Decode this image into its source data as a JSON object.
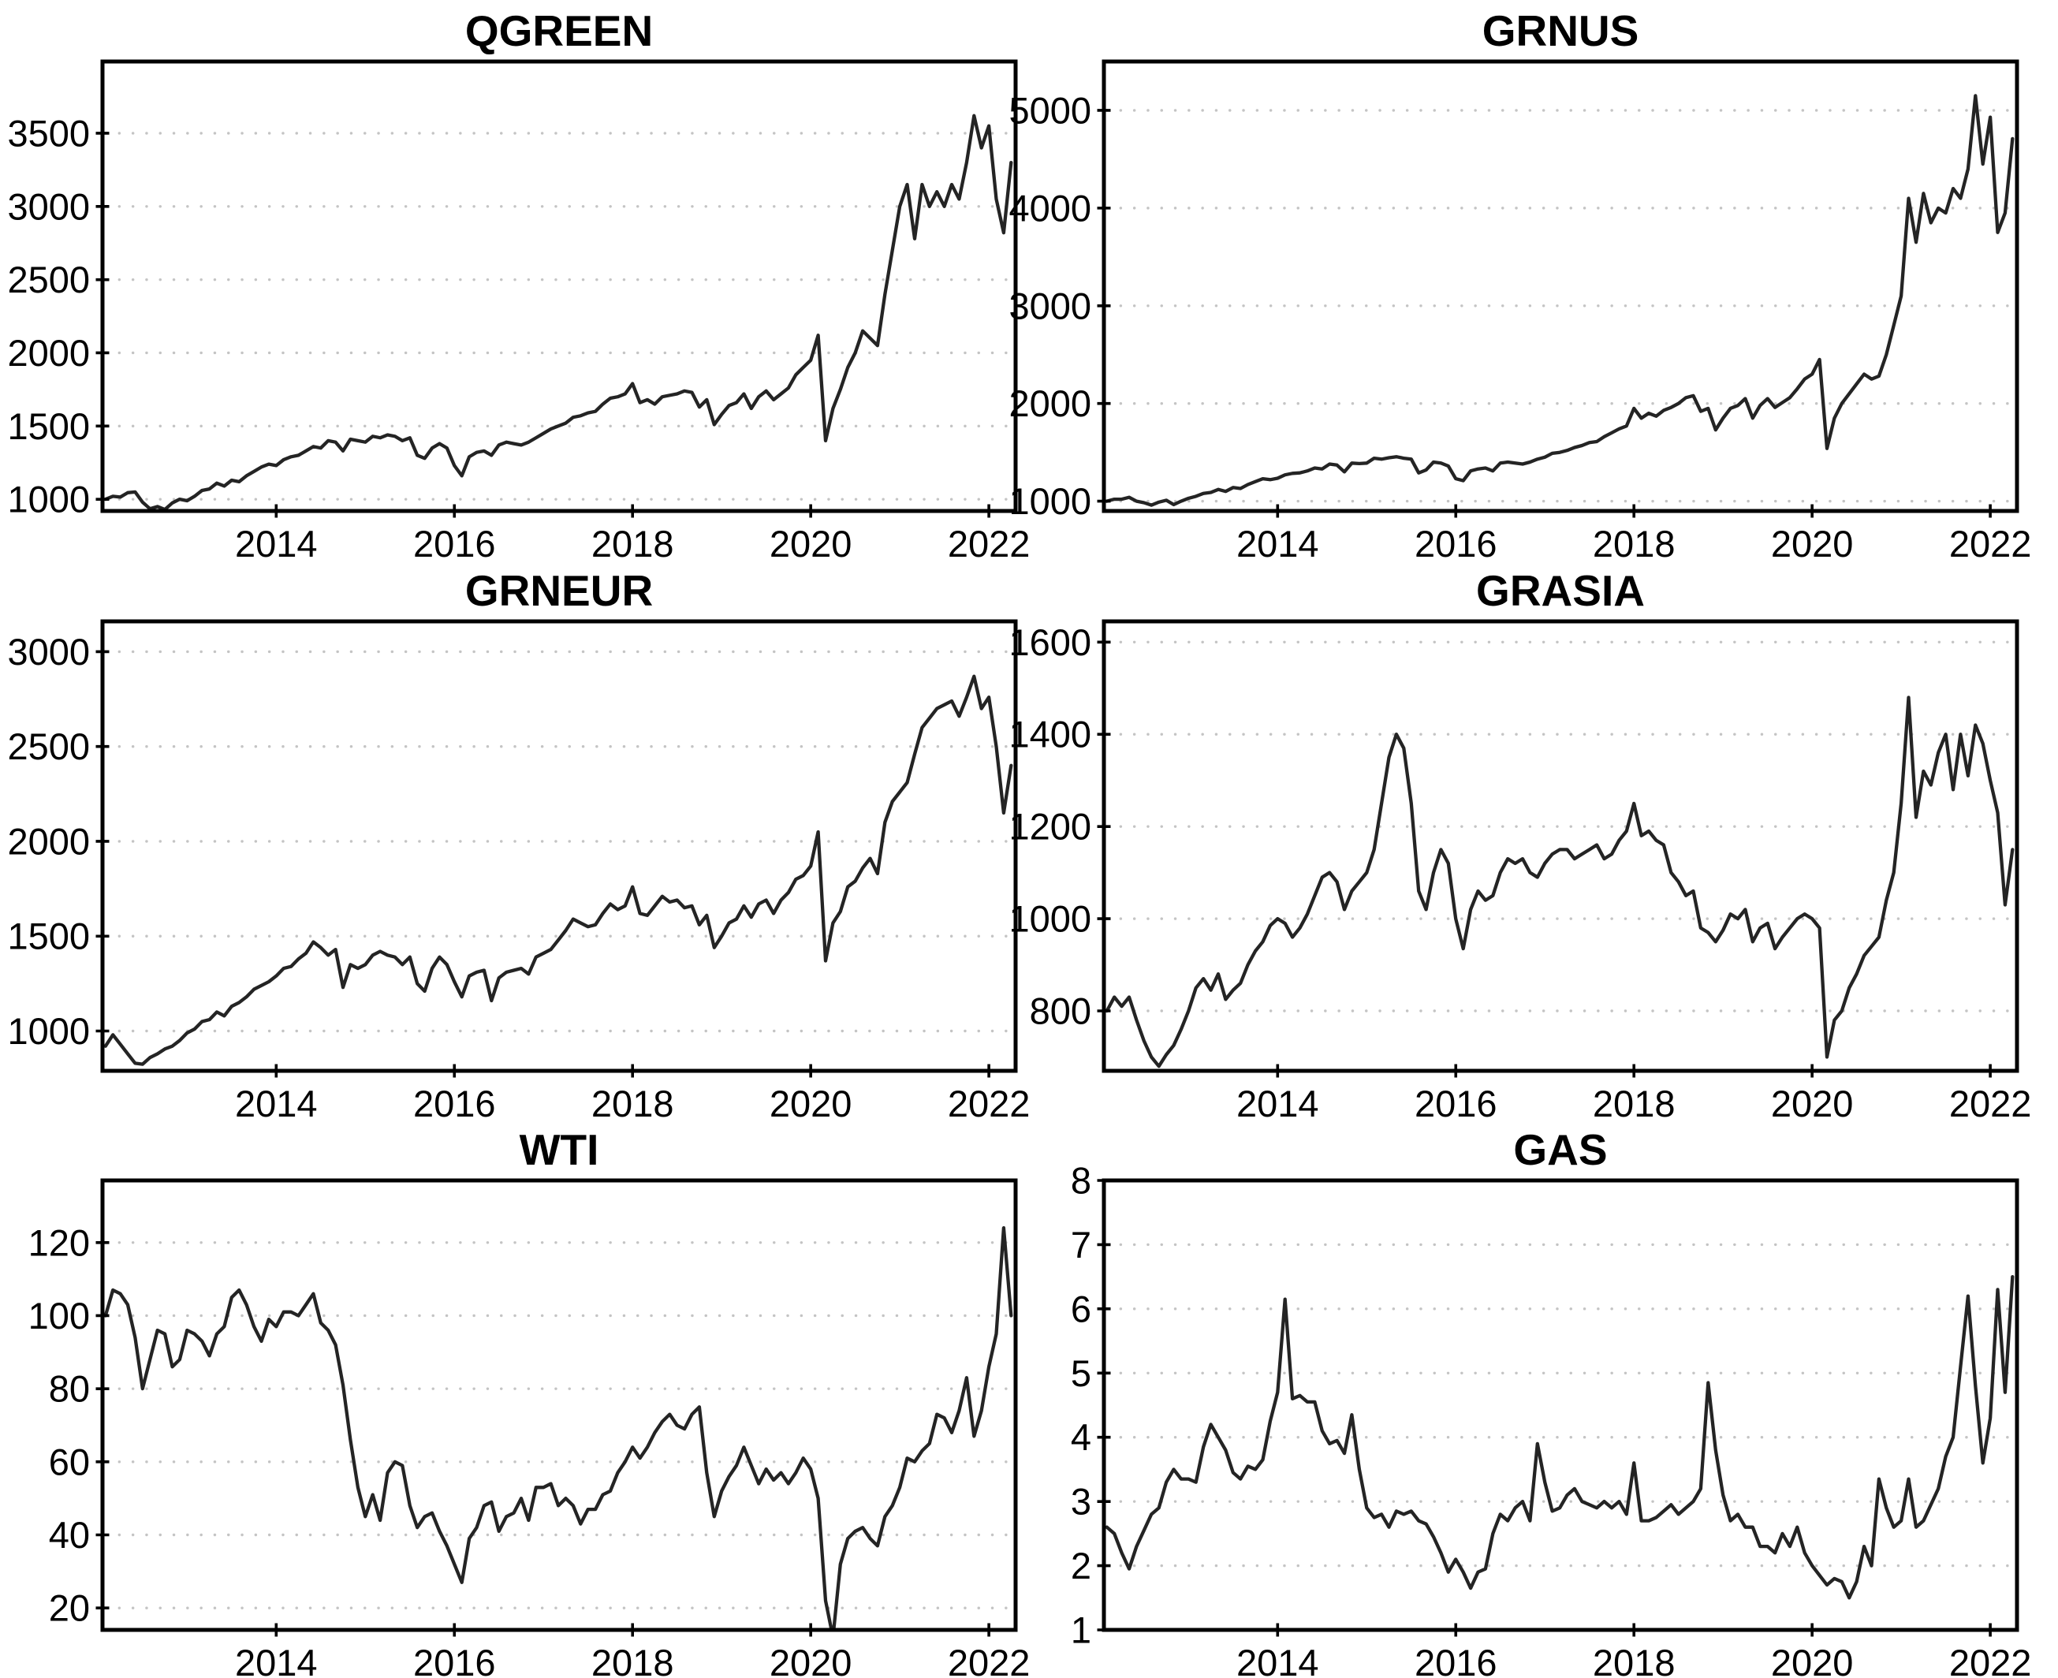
{
  "figure": {
    "background": "#ffffff",
    "line_color": "#242424",
    "grid_color": "#c4c4c4",
    "frame_color": "#000000",
    "tick_label_color": "#000000",
    "grid_style": "dotted-horizontal"
  },
  "chart_data": [
    {
      "type": "line",
      "title": "QGREEN",
      "x_start": 2012.0833,
      "points_per_year": 12,
      "xlim": [
        2012.05,
        2022.3
      ],
      "x_ticks": [
        2014,
        2016,
        2018,
        2020,
        2022
      ],
      "ylim": [
        920,
        3990
      ],
      "y_ticks": [
        1000,
        1500,
        2000,
        2500,
        3000,
        3500
      ],
      "values": [
        1000,
        1020,
        1015,
        1045,
        1050,
        980,
        935,
        950,
        930,
        975,
        1000,
        990,
        1020,
        1060,
        1070,
        1110,
        1090,
        1130,
        1120,
        1160,
        1190,
        1220,
        1240,
        1230,
        1270,
        1290,
        1300,
        1330,
        1360,
        1350,
        1400,
        1390,
        1330,
        1410,
        1400,
        1390,
        1430,
        1420,
        1440,
        1430,
        1400,
        1420,
        1300,
        1280,
        1350,
        1380,
        1350,
        1230,
        1160,
        1290,
        1320,
        1330,
        1300,
        1370,
        1390,
        1380,
        1370,
        1390,
        1420,
        1450,
        1480,
        1500,
        1520,
        1560,
        1570,
        1590,
        1600,
        1650,
        1690,
        1700,
        1720,
        1790,
        1660,
        1680,
        1650,
        1700,
        1710,
        1720,
        1740,
        1730,
        1630,
        1680,
        1510,
        1580,
        1640,
        1660,
        1720,
        1620,
        1700,
        1740,
        1680,
        1720,
        1760,
        1850,
        1900,
        1950,
        2120,
        1400,
        1620,
        1750,
        1900,
        2000,
        2150,
        2100,
        2050,
        2400,
        2700,
        3000,
        3150,
        2780,
        3150,
        3000,
        3100,
        3000,
        3150,
        3050,
        3300,
        3620,
        3400,
        3550,
        3050,
        2820,
        3300
      ]
    },
    {
      "type": "line",
      "title": "GRNUS",
      "x_start": 2012.0833,
      "points_per_year": 12,
      "xlim": [
        2012.05,
        2022.3
      ],
      "x_ticks": [
        2014,
        2016,
        2018,
        2020,
        2022
      ],
      "ylim": [
        900,
        5500
      ],
      "y_ticks": [
        1000,
        2000,
        3000,
        4000,
        5000
      ],
      "values": [
        1000,
        1020,
        1020,
        1040,
        1000,
        985,
        960,
        990,
        1010,
        965,
        1000,
        1030,
        1050,
        1080,
        1090,
        1120,
        1100,
        1140,
        1130,
        1170,
        1200,
        1230,
        1220,
        1235,
        1270,
        1285,
        1290,
        1310,
        1340,
        1330,
        1380,
        1370,
        1300,
        1390,
        1385,
        1390,
        1440,
        1430,
        1445,
        1455,
        1440,
        1430,
        1290,
        1320,
        1400,
        1390,
        1360,
        1230,
        1210,
        1310,
        1330,
        1340,
        1310,
        1390,
        1400,
        1390,
        1380,
        1400,
        1430,
        1450,
        1490,
        1500,
        1520,
        1550,
        1570,
        1600,
        1610,
        1660,
        1700,
        1740,
        1770,
        1950,
        1850,
        1900,
        1870,
        1930,
        1960,
        2000,
        2060,
        2080,
        1920,
        1950,
        1730,
        1850,
        1950,
        1980,
        2050,
        1850,
        1980,
        2050,
        1960,
        2010,
        2060,
        2150,
        2250,
        2300,
        2450,
        1540,
        1850,
        2000,
        2100,
        2200,
        2300,
        2250,
        2280,
        2500,
        2800,
        3100,
        4100,
        3650,
        4150,
        3850,
        4000,
        3950,
        4200,
        4100,
        4400,
        5150,
        4450,
        4930,
        3750,
        3950,
        4710
      ]
    },
    {
      "type": "line",
      "title": "GRNEUR",
      "x_start": 2012.0833,
      "points_per_year": 12,
      "xlim": [
        2012.05,
        2022.3
      ],
      "x_ticks": [
        2014,
        2016,
        2018,
        2020,
        2022
      ],
      "ylim": [
        790,
        3160
      ],
      "y_ticks": [
        1000,
        1500,
        2000,
        2500,
        3000
      ],
      "values": [
        920,
        980,
        930,
        880,
        830,
        825,
        860,
        880,
        905,
        920,
        950,
        990,
        1010,
        1050,
        1060,
        1100,
        1080,
        1130,
        1150,
        1180,
        1220,
        1240,
        1260,
        1290,
        1330,
        1340,
        1380,
        1410,
        1470,
        1440,
        1400,
        1430,
        1230,
        1350,
        1330,
        1350,
        1400,
        1420,
        1400,
        1390,
        1350,
        1390,
        1250,
        1210,
        1330,
        1390,
        1350,
        1260,
        1180,
        1290,
        1310,
        1320,
        1160,
        1280,
        1310,
        1320,
        1330,
        1300,
        1390,
        1410,
        1430,
        1480,
        1530,
        1590,
        1570,
        1550,
        1560,
        1620,
        1670,
        1640,
        1660,
        1760,
        1620,
        1610,
        1660,
        1710,
        1680,
        1690,
        1650,
        1660,
        1560,
        1610,
        1440,
        1500,
        1570,
        1590,
        1660,
        1600,
        1670,
        1690,
        1620,
        1690,
        1730,
        1800,
        1820,
        1870,
        2050,
        1370,
        1570,
        1630,
        1760,
        1790,
        1860,
        1910,
        1830,
        2100,
        2210,
        2260,
        2310,
        2460,
        2600,
        2650,
        2700,
        2720,
        2740,
        2660,
        2760,
        2870,
        2700,
        2760,
        2500,
        2150,
        2400
      ]
    },
    {
      "type": "line",
      "title": "GRASIA",
      "x_start": 2012.0833,
      "points_per_year": 12,
      "xlim": [
        2012.05,
        2022.3
      ],
      "x_ticks": [
        2014,
        2016,
        2018,
        2020,
        2022
      ],
      "ylim": [
        670,
        1645
      ],
      "y_ticks": [
        800,
        1000,
        1200,
        1400,
        1600
      ],
      "values": [
        800,
        830,
        810,
        830,
        780,
        735,
        700,
        680,
        705,
        725,
        760,
        800,
        850,
        870,
        845,
        880,
        825,
        845,
        860,
        900,
        930,
        950,
        985,
        1000,
        990,
        960,
        980,
        1010,
        1050,
        1090,
        1100,
        1080,
        1020,
        1060,
        1080,
        1100,
        1150,
        1250,
        1350,
        1400,
        1370,
        1250,
        1060,
        1020,
        1100,
        1150,
        1120,
        1000,
        935,
        1020,
        1060,
        1040,
        1050,
        1100,
        1130,
        1120,
        1130,
        1100,
        1090,
        1120,
        1140,
        1150,
        1150,
        1130,
        1140,
        1150,
        1160,
        1130,
        1140,
        1170,
        1190,
        1250,
        1180,
        1190,
        1170,
        1160,
        1100,
        1080,
        1050,
        1060,
        980,
        970,
        950,
        975,
        1010,
        1000,
        1020,
        950,
        980,
        990,
        935,
        960,
        980,
        1000,
        1010,
        1000,
        980,
        700,
        780,
        800,
        850,
        880,
        920,
        940,
        960,
        1040,
        1100,
        1250,
        1480,
        1220,
        1320,
        1290,
        1360,
        1400,
        1280,
        1400,
        1310,
        1420,
        1380,
        1300,
        1230,
        1030,
        1150
      ]
    },
    {
      "type": "line",
      "title": "WTI",
      "x_start": 2012.0833,
      "points_per_year": 12,
      "xlim": [
        2012.05,
        2022.3
      ],
      "x_ticks": [
        2014,
        2016,
        2018,
        2020,
        2022
      ],
      "ylim": [
        14,
        137
      ],
      "y_ticks": [
        20,
        40,
        60,
        80,
        100,
        120
      ],
      "values": [
        100,
        107,
        106,
        103,
        94,
        80,
        88,
        96,
        95,
        86,
        88,
        96,
        95,
        93,
        89,
        95,
        97,
        105,
        107,
        103,
        97,
        93,
        99,
        97,
        101,
        101,
        100,
        103,
        106,
        98,
        96,
        92,
        81,
        66,
        53,
        45,
        51,
        44,
        57,
        60,
        59,
        48,
        42,
        45,
        46,
        41,
        37,
        32,
        27,
        39,
        42,
        48,
        49,
        41,
        45,
        46,
        50,
        44,
        53,
        53,
        54,
        48,
        50,
        48,
        43,
        47,
        47,
        51,
        52,
        57,
        60,
        64,
        61,
        64,
        68,
        71,
        73,
        70,
        69,
        73,
        75,
        57,
        45,
        52,
        56,
        59,
        64,
        59,
        54,
        58,
        55,
        57,
        54,
        57,
        61,
        58,
        50,
        22,
        12,
        32,
        39,
        41,
        42,
        39,
        37,
        45,
        48,
        53,
        61,
        60,
        63,
        65,
        73,
        72,
        68,
        74,
        83,
        67,
        74,
        86,
        95,
        124,
        100
      ]
    },
    {
      "type": "line",
      "title": "GAS",
      "x_start": 2012.0833,
      "points_per_year": 12,
      "xlim": [
        2012.05,
        2022.3
      ],
      "x_ticks": [
        2014,
        2016,
        2018,
        2020,
        2022
      ],
      "ylim": [
        1,
        8
      ],
      "y_ticks": [
        1,
        2,
        3,
        4,
        5,
        6,
        7,
        8
      ],
      "values": [
        2.6,
        2.5,
        2.2,
        1.95,
        2.3,
        2.55,
        2.8,
        2.9,
        3.3,
        3.5,
        3.35,
        3.35,
        3.3,
        3.85,
        4.2,
        4.0,
        3.8,
        3.45,
        3.35,
        3.55,
        3.5,
        3.65,
        4.25,
        4.7,
        6.15,
        4.6,
        4.65,
        4.55,
        4.55,
        4.1,
        3.9,
        3.95,
        3.75,
        4.35,
        3.5,
        2.9,
        2.75,
        2.8,
        2.6,
        2.85,
        2.8,
        2.85,
        2.7,
        2.65,
        2.45,
        2.2,
        1.9,
        2.1,
        1.9,
        1.65,
        1.9,
        1.95,
        2.5,
        2.8,
        2.7,
        2.9,
        3.0,
        2.7,
        3.9,
        3.3,
        2.85,
        2.9,
        3.1,
        3.2,
        3.0,
        2.95,
        2.9,
        3.0,
        2.9,
        3.0,
        2.8,
        3.6,
        2.7,
        2.7,
        2.75,
        2.85,
        2.95,
        2.8,
        2.9,
        3.0,
        3.2,
        4.85,
        3.8,
        3.1,
        2.7,
        2.8,
        2.6,
        2.6,
        2.3,
        2.3,
        2.2,
        2.5,
        2.3,
        2.6,
        2.2,
        2.0,
        1.85,
        1.7,
        1.8,
        1.75,
        1.5,
        1.75,
        2.3,
        2.0,
        3.35,
        2.9,
        2.6,
        2.7,
        3.35,
        2.6,
        2.7,
        2.95,
        3.2,
        3.7,
        4.0,
        5.1,
        6.2,
        4.8,
        3.6,
        4.3,
        6.3,
        4.7,
        6.5
      ]
    }
  ]
}
